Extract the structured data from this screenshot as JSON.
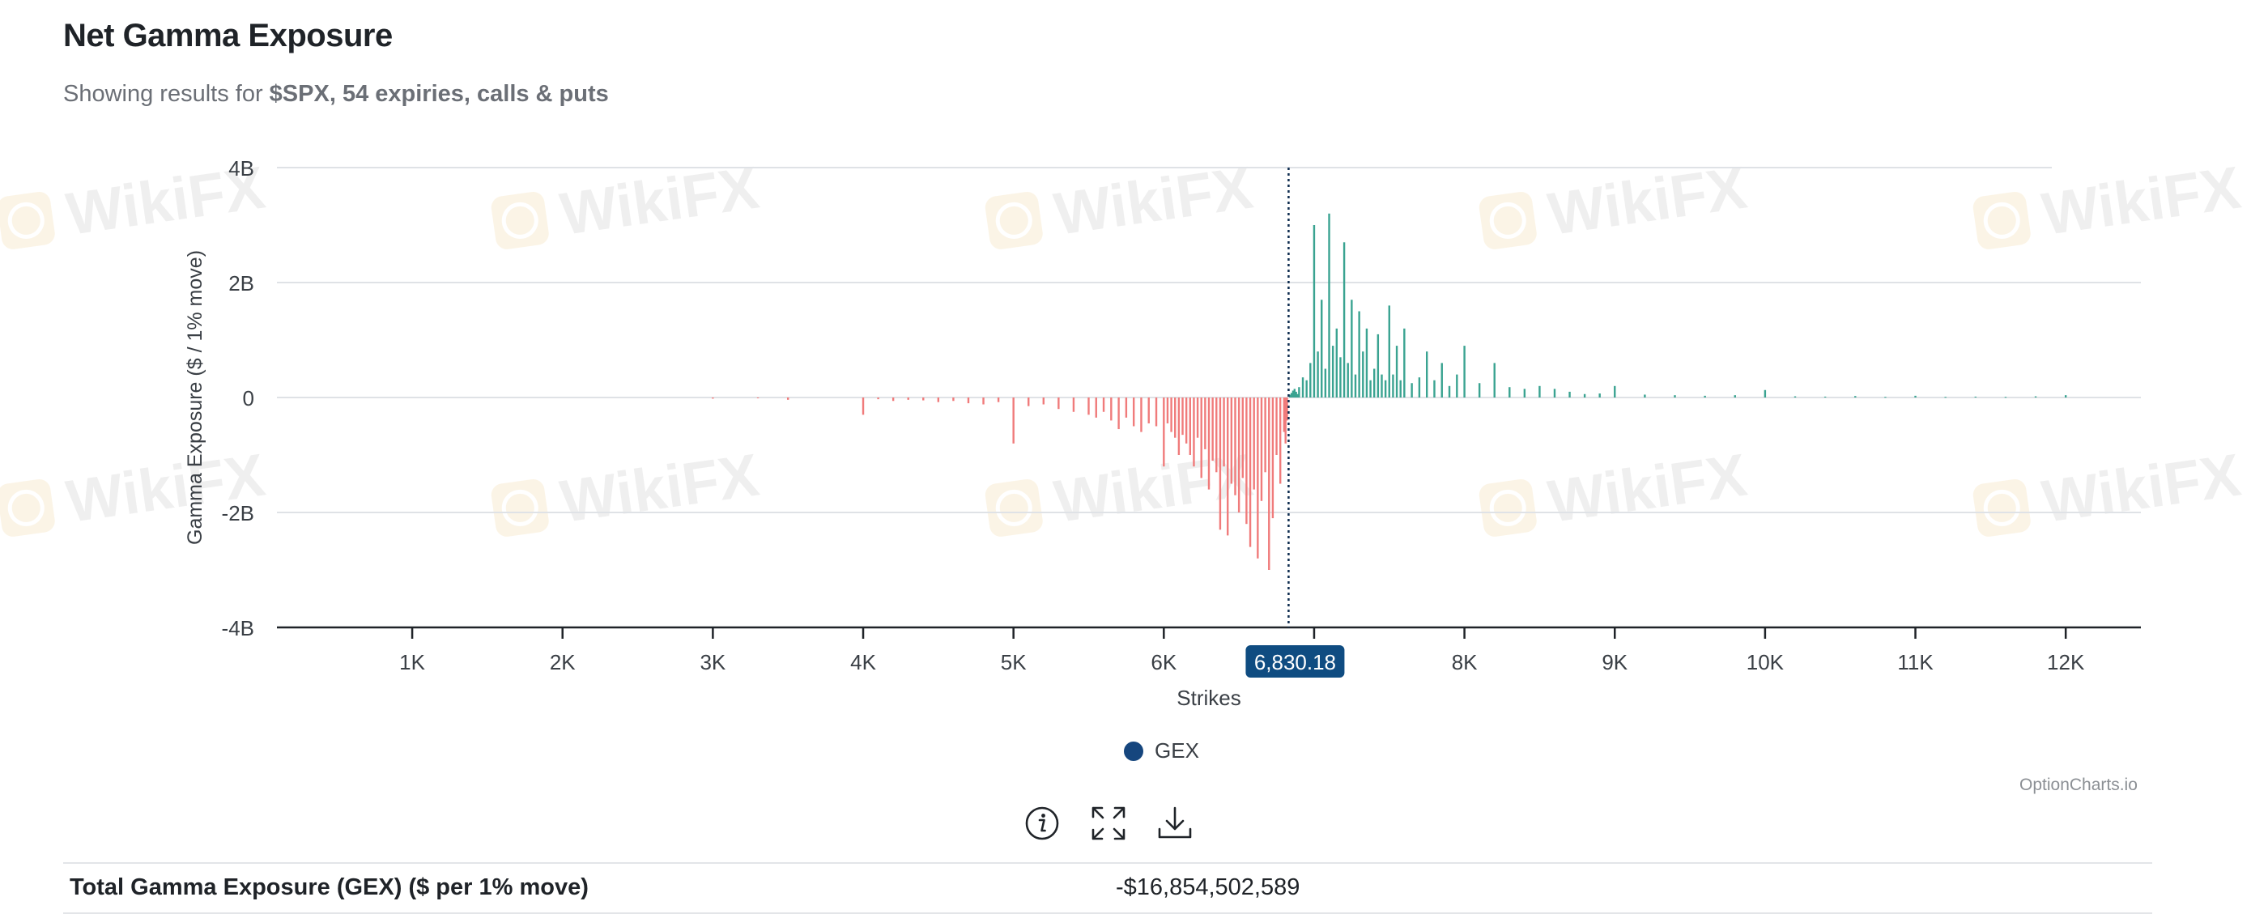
{
  "header": {
    "title": "Net Gamma Exposure",
    "subtitle_prefix": "Showing results for ",
    "subtitle_bold": "$SPX, 54 expiries, calls & puts"
  },
  "watermark": {
    "text": "WikiFX"
  },
  "chart_data": {
    "type": "bar",
    "xlabel": "Strikes",
    "ylabel": "Gamma Exposure ($ / 1% move)",
    "xlim": [
      100,
      12500
    ],
    "ylim": [
      -4000000000,
      4000000000
    ],
    "x_ticks": [
      1000,
      2000,
      3000,
      4000,
      5000,
      6000,
      7000,
      8000,
      9000,
      10000,
      11000,
      12000
    ],
    "x_tick_labels": [
      "1K",
      "2K",
      "3K",
      "4K",
      "5K",
      "6K",
      "",
      "8K",
      "9K",
      "10K",
      "11K",
      "12K"
    ],
    "y_ticks": [
      4000000000,
      2000000000,
      0,
      -2000000000,
      -4000000000
    ],
    "y_tick_labels": [
      "4B",
      "2B",
      "0",
      "-2B",
      "-4B"
    ],
    "grid": true,
    "spot_price": 6830.18,
    "spot_label": "6,830.18",
    "positive_color": "#3aa391",
    "negative_color": "#f07b7b",
    "spot_badge_color": "#0f4c81",
    "series": [
      {
        "name": "GEX",
        "color": "#16467e",
        "x": [
          3000,
          3300,
          3500,
          4000,
          4100,
          4200,
          4300,
          4400,
          4500,
          4600,
          4700,
          4800,
          4900,
          5000,
          5100,
          5200,
          5300,
          5400,
          5500,
          5550,
          5600,
          5650,
          5700,
          5750,
          5800,
          5850,
          5900,
          5950,
          6000,
          6025,
          6050,
          6075,
          6100,
          6125,
          6150,
          6175,
          6200,
          6225,
          6250,
          6275,
          6300,
          6325,
          6350,
          6375,
          6400,
          6425,
          6450,
          6475,
          6500,
          6525,
          6550,
          6575,
          6600,
          6625,
          6650,
          6675,
          6700,
          6725,
          6750,
          6775,
          6800,
          6810,
          6820,
          6840,
          6850,
          6860,
          6870,
          6880,
          6890,
          6900,
          6925,
          6950,
          6975,
          7000,
          7025,
          7050,
          7075,
          7100,
          7125,
          7150,
          7175,
          7200,
          7225,
          7250,
          7275,
          7300,
          7325,
          7350,
          7375,
          7400,
          7425,
          7450,
          7475,
          7500,
          7525,
          7550,
          7575,
          7600,
          7650,
          7700,
          7750,
          7800,
          7850,
          7900,
          7950,
          8000,
          8100,
          8200,
          8300,
          8400,
          8500,
          8600,
          8700,
          8800,
          8900,
          9000,
          9200,
          9400,
          9600,
          9800,
          10000,
          10200,
          10400,
          10600,
          10800,
          11000,
          11200,
          11400,
          11600,
          11800,
          12000
        ],
        "values": [
          -20000000,
          -10000000,
          -40000000,
          -300000000,
          -30000000,
          -60000000,
          -40000000,
          -50000000,
          -80000000,
          -60000000,
          -100000000,
          -120000000,
          -80000000,
          -800000000,
          -150000000,
          -120000000,
          -200000000,
          -250000000,
          -300000000,
          -350000000,
          -250000000,
          -400000000,
          -550000000,
          -350000000,
          -500000000,
          -600000000,
          -450000000,
          -500000000,
          -1200000000,
          -450000000,
          -600000000,
          -700000000,
          -1000000000,
          -650000000,
          -800000000,
          -1000000000,
          -1200000000,
          -700000000,
          -1400000000,
          -900000000,
          -1600000000,
          -1100000000,
          -1300000000,
          -2300000000,
          -1200000000,
          -2400000000,
          -1500000000,
          -1700000000,
          -2000000000,
          -1400000000,
          -2200000000,
          -2600000000,
          -1600000000,
          -2800000000,
          -1800000000,
          -1300000000,
          -3000000000,
          -2100000000,
          -1000000000,
          -1500000000,
          -600000000,
          -800000000,
          -400000000,
          50000000,
          80000000,
          120000000,
          150000000,
          100000000,
          60000000,
          180000000,
          350000000,
          300000000,
          600000000,
          3000000000,
          800000000,
          1700000000,
          500000000,
          3200000000,
          900000000,
          1200000000,
          700000000,
          2700000000,
          600000000,
          1700000000,
          400000000,
          1500000000,
          800000000,
          1200000000,
          300000000,
          500000000,
          1100000000,
          400000000,
          300000000,
          1600000000,
          400000000,
          900000000,
          300000000,
          1200000000,
          250000000,
          350000000,
          800000000,
          300000000,
          600000000,
          200000000,
          400000000,
          900000000,
          250000000,
          600000000,
          180000000,
          150000000,
          200000000,
          150000000,
          100000000,
          60000000,
          70000000,
          200000000,
          50000000,
          40000000,
          30000000,
          40000000,
          130000000,
          20000000,
          15000000,
          25000000,
          10000000,
          30000000,
          10000000,
          15000000,
          10000000,
          20000000,
          40000000
        ]
      }
    ]
  },
  "legend": {
    "label": "GEX"
  },
  "credit": {
    "text": "OptionCharts.io"
  },
  "toolbar": {
    "icons": [
      "info-icon",
      "expand-icon",
      "download-icon"
    ]
  },
  "summary": {
    "label": "Total Gamma Exposure (GEX) ($ per 1% move)",
    "value": "-$16,854,502,589"
  }
}
